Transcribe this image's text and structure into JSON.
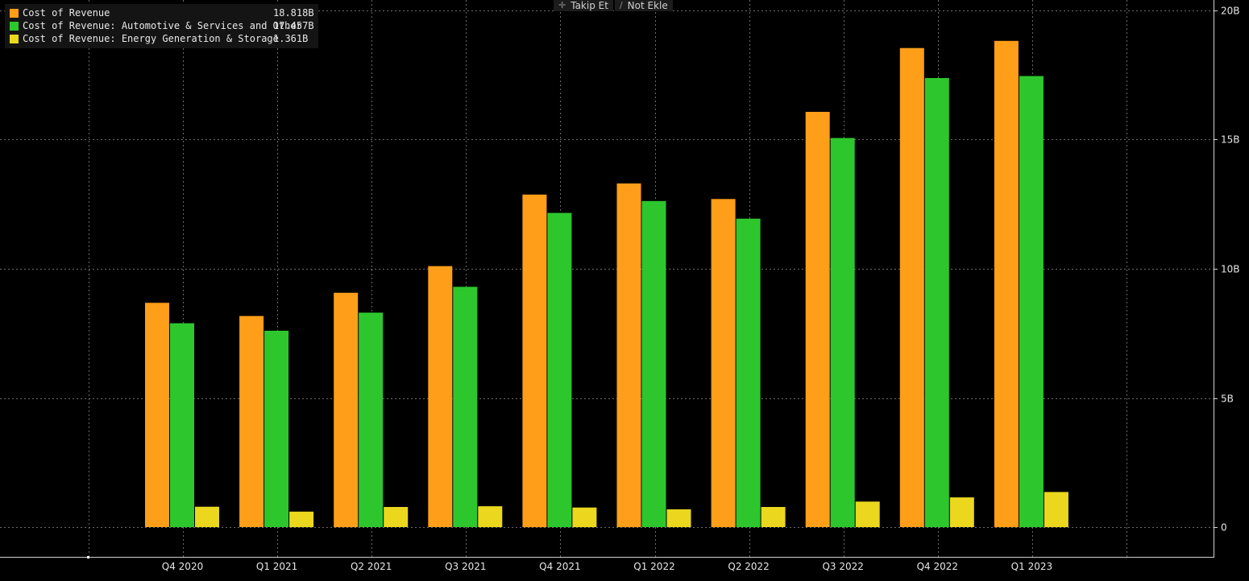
{
  "toolbar": {
    "follow_label": "Takip Et",
    "note_label": "Not Ekle"
  },
  "chart_data": {
    "type": "bar",
    "categories": [
      "Q4 2020",
      "Q1 2021",
      "Q2 2021",
      "Q3 2021",
      "Q4 2021",
      "Q1 2022",
      "Q2 2022",
      "Q3 2022",
      "Q4 2022",
      "Q1 2023"
    ],
    "series": [
      {
        "name": "Cost of Revenue",
        "display_value": "18.818B",
        "color": "#ff9e18",
        "values": [
          8.68,
          8.17,
          9.07,
          10.1,
          12.87,
          13.3,
          12.7,
          16.07,
          18.54,
          18.818
        ]
      },
      {
        "name": "Cost of Revenue: Automotive & Services and Other",
        "display_value": "17.457B",
        "color": "#2dc72d",
        "values": [
          7.89,
          7.6,
          8.3,
          9.3,
          12.16,
          12.62,
          11.94,
          15.06,
          17.38,
          17.457
        ]
      },
      {
        "name": "Cost of Revenue: Energy Generation & Storage",
        "display_value": "1.361B",
        "color": "#ebd71e",
        "values": [
          0.79,
          0.6,
          0.78,
          0.81,
          0.76,
          0.69,
          0.78,
          0.99,
          1.15,
          1.361
        ]
      }
    ],
    "y_ticks": [
      {
        "value": 0,
        "label": "0"
      },
      {
        "value": 5,
        "label": "5B"
      },
      {
        "value": 10,
        "label": "10B"
      },
      {
        "value": 15,
        "label": "15B"
      },
      {
        "value": 20,
        "label": "20B"
      }
    ],
    "ylim": [
      -1.15,
      20.4
    ],
    "y_axis_position": "right",
    "legend_position": "top-left",
    "grid": true,
    "background_color": "#000000"
  }
}
